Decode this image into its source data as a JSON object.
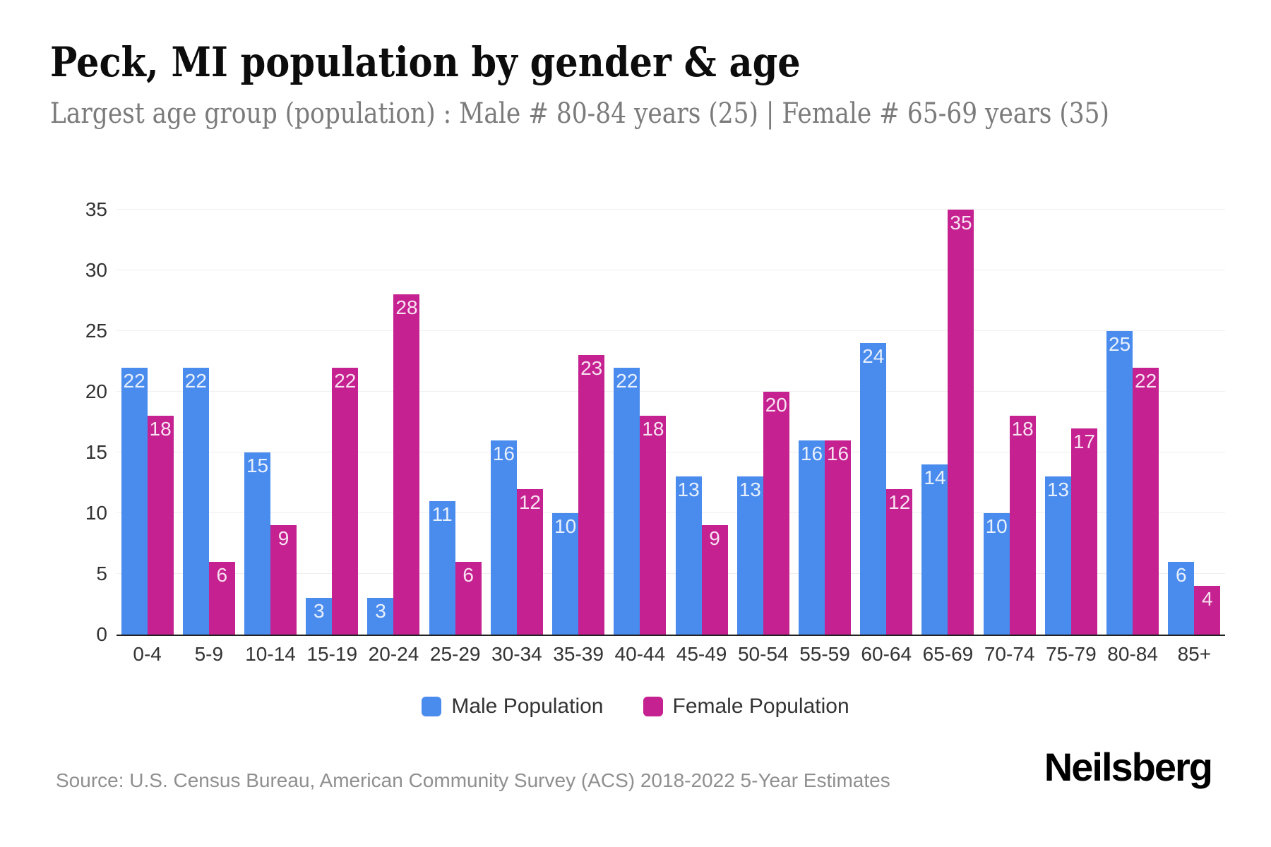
{
  "header": {
    "title": "Peck, MI population by gender & age",
    "subtitle": "Largest age group (population) : Male # 80-84 years (25) | Female # 65-69 years (35)"
  },
  "chart_data": {
    "type": "bar",
    "title": "Peck, MI population by gender & age",
    "subtitle": "Largest age group (population) : Male # 80-84 years (25) | Female # 65-69 years (35)",
    "categories": [
      "0-4",
      "5-9",
      "10-14",
      "15-19",
      "20-24",
      "25-29",
      "30-34",
      "35-39",
      "40-44",
      "45-49",
      "50-54",
      "55-59",
      "60-64",
      "65-69",
      "70-74",
      "75-79",
      "80-84",
      "85+"
    ],
    "series": [
      {
        "name": "Male Population",
        "color": "#4a8bee",
        "values": [
          22,
          22,
          15,
          3,
          3,
          11,
          16,
          10,
          22,
          13,
          13,
          16,
          24,
          14,
          10,
          13,
          25,
          6
        ]
      },
      {
        "name": "Female Population",
        "color": "#c52190",
        "values": [
          18,
          6,
          9,
          22,
          28,
          6,
          12,
          23,
          18,
          9,
          20,
          16,
          12,
          35,
          18,
          17,
          22,
          4
        ]
      }
    ],
    "ylim": [
      0,
      35
    ],
    "yticks": [
      0,
      5,
      10,
      15,
      20,
      25,
      30,
      35
    ],
    "grid": "horizontal",
    "legend_position": "bottom",
    "bar_label_color": "rgba(255,255,255,0.87)",
    "axis_label_color": "#333333",
    "gridline_color": "#efefef",
    "baseline_color": "#222222"
  },
  "footer": {
    "source": "Source: U.S. Census Bureau, American Community Survey (ACS) 2018-2022 5-Year Estimates",
    "brand": "Neilsberg"
  }
}
